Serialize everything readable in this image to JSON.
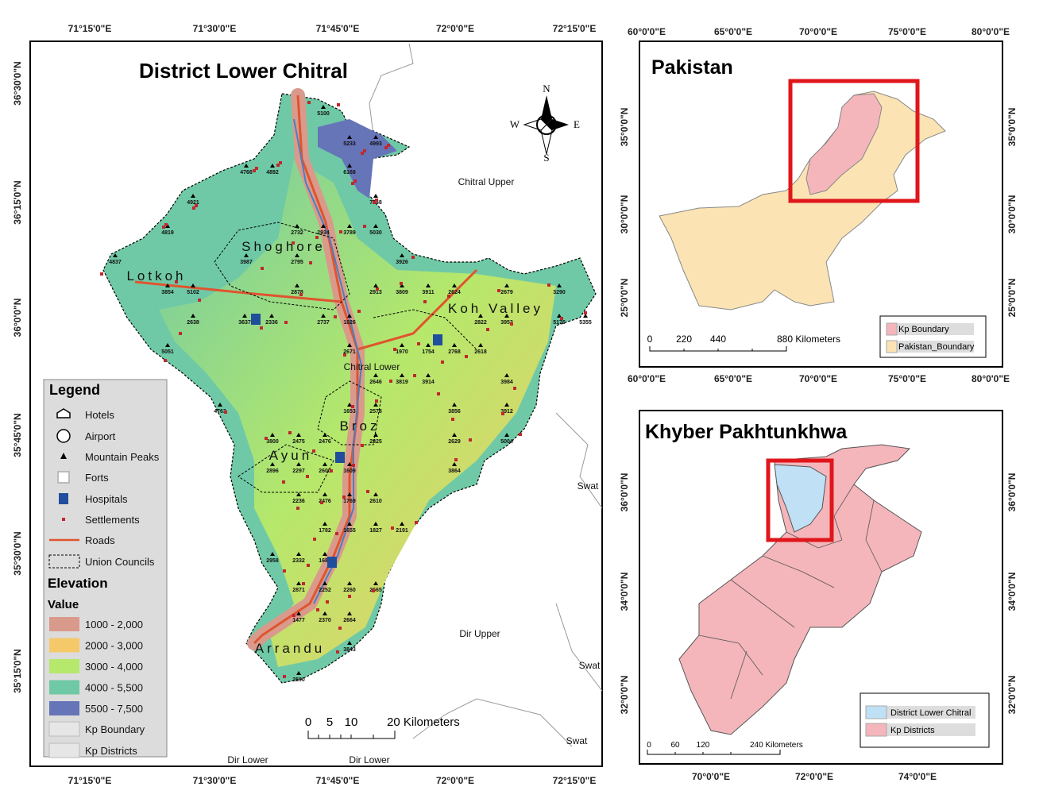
{
  "main_map": {
    "title": "District Lower Chitral",
    "lon_labels": [
      "71°15'0\"E",
      "71°30'0\"E",
      "71°45'0\"E",
      "72°0'0\"E",
      "72°15'0\"E"
    ],
    "lat_labels": [
      "36°30'0\"N",
      "36°15'0\"N",
      "36°0'0\"N",
      "35°45'0\"N",
      "35°30'0\"N",
      "35°15'0\"N"
    ],
    "compass": [
      "N",
      "E",
      "S",
      "W"
    ],
    "neighbors": [
      "Chitral Upper",
      "Dir Upper",
      "Swat",
      "Swat",
      "Swat",
      "Dir Lower",
      "Dir Lower"
    ],
    "areas": [
      "Chitral Lower",
      "Shoghore",
      "Lotkoh",
      "Koh Valley",
      "Broz",
      "Ayun",
      "Arrandu"
    ],
    "peaks": [
      5100,
      5233,
      4993,
      4766,
      4892,
      6168,
      4921,
      7048,
      4819,
      2732,
      2934,
      3789,
      5030,
      4837,
      3987,
      2795,
      3926,
      3854,
      5102,
      2878,
      2913,
      3809,
      3911,
      2624,
      2679,
      3290,
      2638,
      3637,
      2336,
      2737,
      1826,
      2822,
      3952,
      5176,
      5355,
      5051,
      2671,
      1970,
      1754,
      2768,
      2618,
      2646,
      3819,
      3914,
      3984,
      4763,
      1653,
      2578,
      3856,
      3912,
      3800,
      2475,
      2476,
      2825,
      2629,
      5004,
      2896,
      2297,
      2600,
      1609,
      3864,
      2236,
      2476,
      1769,
      2610,
      1782,
      1655,
      1827,
      2191,
      2958,
      2332,
      1683,
      2871,
      2252,
      2260,
      2665,
      1477,
      2370,
      2664,
      3843,
      2590
    ],
    "legend": {
      "title": "Legend",
      "items": [
        "Hotels",
        "Airport",
        "Mountain Peaks",
        "Forts",
        "Hospitals",
        "Settlements",
        "Roads",
        "Union Councils"
      ],
      "elevation_title": "Elevation",
      "value_title": "Value",
      "classes": [
        {
          "label": "1000 - 2,000",
          "color": "#d99a8c"
        },
        {
          "label": "2000 - 3,000",
          "color": "#f5c96a"
        },
        {
          "label": "3000 - 4,000",
          "color": "#b5e86b"
        },
        {
          "label": "4000 - 5,500",
          "color": "#6fc9a6"
        },
        {
          "label": "5500 - 7,500",
          "color": "#6674b8"
        }
      ],
      "boundaries": [
        "Kp Boundary",
        "Kp Districts"
      ]
    },
    "scale_bar": [
      "0",
      "5",
      "10",
      "20 Kilometers"
    ]
  },
  "pakistan_inset": {
    "title": "Pakistan",
    "lon_labels": [
      "60°0'0\"E",
      "65°0'0\"E",
      "70°0'0\"E",
      "75°0'0\"E",
      "80°0'0\"E"
    ],
    "lat_labels": [
      "35°0'0\"N",
      "30°0'0\"N",
      "25°0'0\"N"
    ],
    "legend": [
      {
        "label": "Kp Boundary",
        "color": "#f4b6bb"
      },
      {
        "label": "Pakistan_Boundary",
        "color": "#fbe3b4"
      }
    ],
    "scale_bar": [
      "0",
      "220",
      "440",
      "880 Kilometers"
    ]
  },
  "kp_inset": {
    "title": "Khyber Pakhtunkhwa",
    "lon_labels": [
      "70°0'0\"E",
      "72°0'0\"E",
      "74°0'0\"E"
    ],
    "lat_labels": [
      "36°0'0\"N",
      "34°0'0\"N",
      "32°0'0\"N"
    ],
    "legend": [
      {
        "label": "District Lower Chitral",
        "color": "#bfe0f5"
      },
      {
        "label": "Kp Districts",
        "color": "#f4b6bb"
      }
    ],
    "scale_bar": [
      "0",
      "60",
      "120",
      "240 Kilometers"
    ]
  }
}
